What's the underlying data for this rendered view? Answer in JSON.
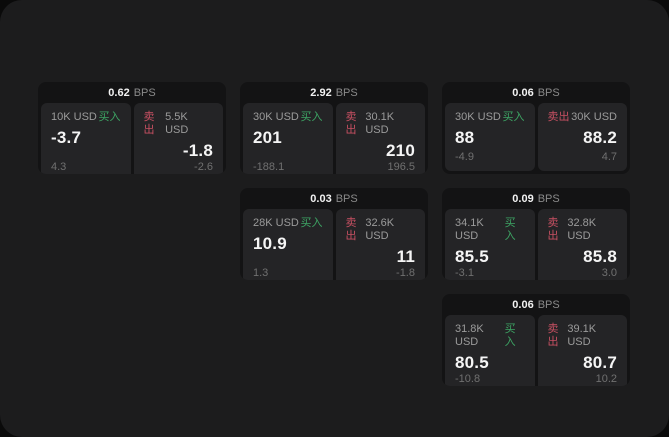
{
  "labels": {
    "unit": "BPS",
    "buy": "买入",
    "sell": "卖出"
  },
  "colors": {
    "surface": "#1c1c1d",
    "card": "#131314",
    "tile": "#242426",
    "buy_green": "#3da564",
    "sell_red": "#c75062",
    "value_white": "#f5f5f5",
    "muted_gray": "#9b9b9b",
    "delta_gray": "#707070"
  },
  "cards": [
    {
      "spread": "0.62",
      "buy": {
        "size": "10K USD",
        "price": "-3.7",
        "delta": "4.3"
      },
      "sell": {
        "size": "5.5K USD",
        "price": "-1.8",
        "delta": "-2.6"
      }
    },
    {
      "spread": "2.92",
      "buy": {
        "size": "30K USD",
        "price": "201",
        "delta": "-188.1"
      },
      "sell": {
        "size": "30.1K USD",
        "price": "210",
        "delta": "196.5"
      }
    },
    {
      "spread": "0.06",
      "buy": {
        "size": "30K USD",
        "price": "88",
        "delta": "-4.9"
      },
      "sell": {
        "size": "30K USD",
        "price": "88.2",
        "delta": "4.7"
      }
    },
    {
      "spread": "0.03",
      "buy": {
        "size": "28K USD",
        "price": "10.9",
        "delta": "1.3"
      },
      "sell": {
        "size": "32.6K USD",
        "price": "11",
        "delta": "-1.8"
      }
    },
    {
      "spread": "0.09",
      "buy": {
        "size": "34.1K USD",
        "price": "85.5",
        "delta": "-3.1"
      },
      "sell": {
        "size": "32.8K USD",
        "price": "85.8",
        "delta": "3.0"
      }
    },
    {
      "spread": "0.06",
      "buy": {
        "size": "31.8K USD",
        "price": "80.5",
        "delta": "-10.8"
      },
      "sell": {
        "size": "39.1K USD",
        "price": "80.7",
        "delta": "10.2"
      }
    }
  ]
}
